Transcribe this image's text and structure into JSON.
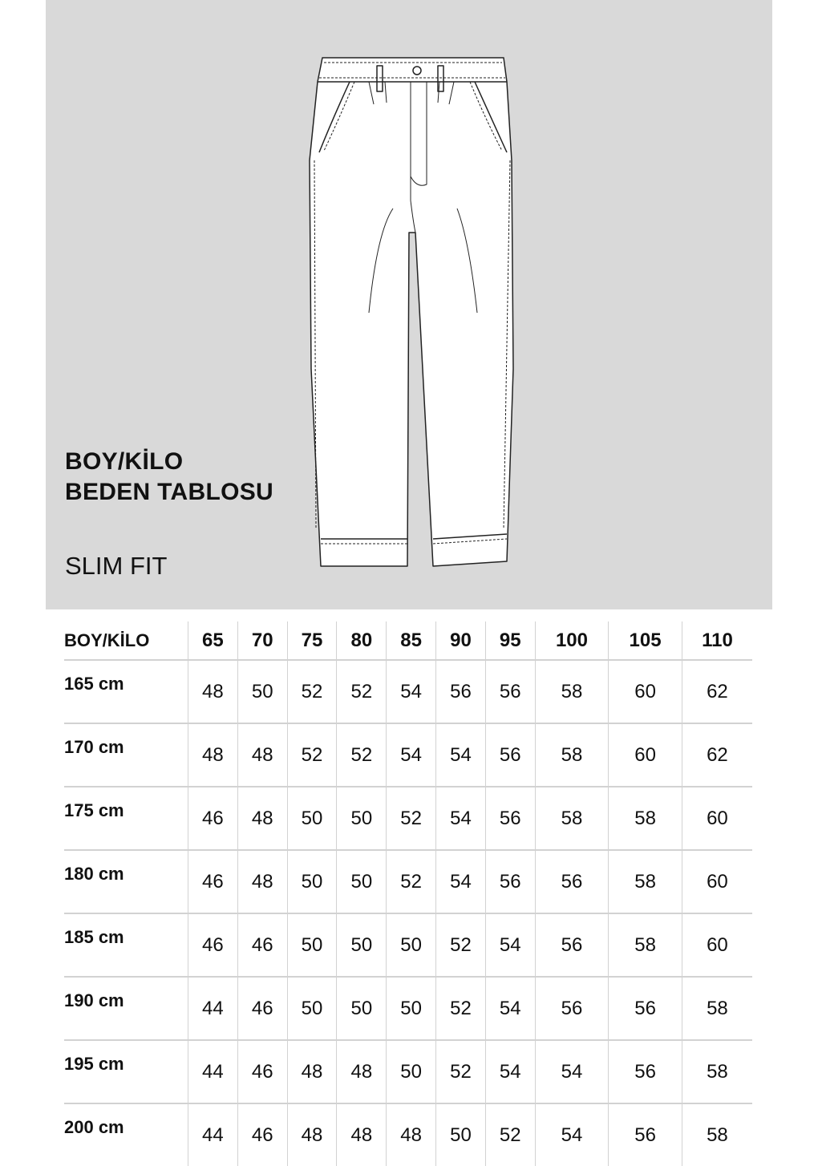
{
  "panel": {
    "background": "#d9d9d9",
    "title_line1": "BOY/KİLO",
    "title_line2": "BEDEN TABLOSU",
    "fit": "SLIM FIT",
    "illustration": "pants-technical-drawing"
  },
  "table": {
    "corner": "BOY/KİLO",
    "weights": [
      "65",
      "70",
      "75",
      "80",
      "85",
      "90",
      "95",
      "100",
      "105",
      "110"
    ],
    "rows": [
      {
        "height": "165 cm",
        "sizes": [
          "48",
          "50",
          "52",
          "52",
          "54",
          "56",
          "56",
          "58",
          "60",
          "62"
        ]
      },
      {
        "height": "170 cm",
        "sizes": [
          "48",
          "48",
          "52",
          "52",
          "54",
          "54",
          "56",
          "58",
          "60",
          "62"
        ]
      },
      {
        "height": "175 cm",
        "sizes": [
          "46",
          "48",
          "50",
          "50",
          "52",
          "54",
          "56",
          "58",
          "58",
          "60"
        ]
      },
      {
        "height": "180 cm",
        "sizes": [
          "46",
          "48",
          "50",
          "50",
          "52",
          "54",
          "56",
          "56",
          "58",
          "60"
        ]
      },
      {
        "height": "185 cm",
        "sizes": [
          "46",
          "46",
          "50",
          "50",
          "50",
          "52",
          "54",
          "56",
          "58",
          "60"
        ]
      },
      {
        "height": "190 cm",
        "sizes": [
          "44",
          "46",
          "50",
          "50",
          "50",
          "52",
          "54",
          "56",
          "56",
          "58"
        ]
      },
      {
        "height": "195 cm",
        "sizes": [
          "44",
          "46",
          "48",
          "48",
          "50",
          "52",
          "54",
          "54",
          "56",
          "58"
        ]
      },
      {
        "height": "200 cm",
        "sizes": [
          "44",
          "46",
          "48",
          "48",
          "48",
          "50",
          "52",
          "54",
          "56",
          "58"
        ]
      }
    ]
  }
}
